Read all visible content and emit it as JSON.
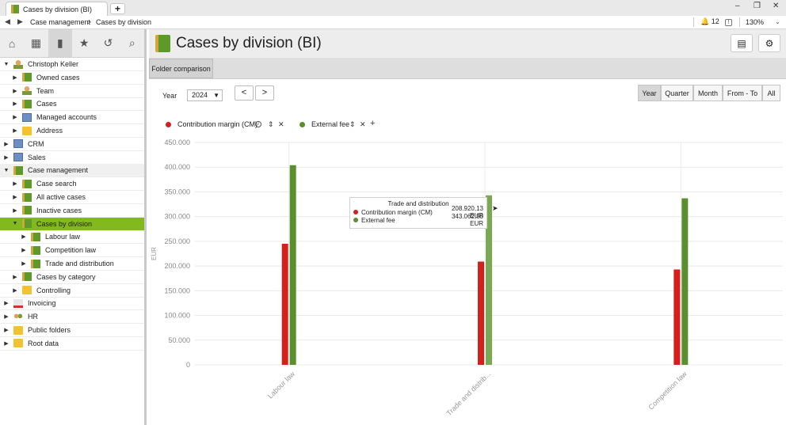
{
  "window": {
    "tab_title": "Cases by division (BI)",
    "new_tab": "+",
    "minimize": "–",
    "restore": "❐",
    "close": "✕"
  },
  "addressbar": {
    "back": "◀",
    "forward": "▶",
    "crumbs": [
      "Case management",
      "Cases by division"
    ],
    "separator": ">",
    "notification_count": "12",
    "zoom": "130%"
  },
  "sidebar": {
    "tools": [
      "home-icon",
      "calendar-icon",
      "chart-icon",
      "star-icon",
      "history-icon",
      "search-icon"
    ],
    "tree": [
      {
        "label": "Christoph Keller",
        "level": 0,
        "expanded": true,
        "icon": "person"
      },
      {
        "label": "Owned cases",
        "level": 1,
        "expanded": false,
        "icon": "green"
      },
      {
        "label": "Team",
        "level": 1,
        "expanded": false,
        "icon": "person"
      },
      {
        "label": "Cases",
        "level": 1,
        "expanded": false,
        "icon": "green"
      },
      {
        "label": "Managed accounts",
        "level": 1,
        "expanded": false,
        "icon": "blue"
      },
      {
        "label": "Address",
        "level": 1,
        "expanded": false,
        "icon": "folder"
      },
      {
        "label": "CRM",
        "level": 0,
        "expanded": false,
        "icon": "blue"
      },
      {
        "label": "Sales",
        "level": 0,
        "expanded": false,
        "icon": "blue"
      },
      {
        "label": "Case management",
        "level": 0,
        "expanded": true,
        "icon": "green",
        "highlight": true
      },
      {
        "label": "Case search",
        "level": 1,
        "expanded": false,
        "icon": "green"
      },
      {
        "label": "All active cases",
        "level": 1,
        "expanded": false,
        "icon": "green"
      },
      {
        "label": "Inactive cases",
        "level": 1,
        "expanded": false,
        "icon": "green"
      },
      {
        "label": "Cases by division",
        "level": 1,
        "expanded": true,
        "icon": "green",
        "selected": true
      },
      {
        "label": "Labour law",
        "level": 2,
        "expanded": false,
        "icon": "green"
      },
      {
        "label": "Competition law",
        "level": 2,
        "expanded": false,
        "icon": "green"
      },
      {
        "label": "Trade and distribution",
        "level": 2,
        "expanded": false,
        "icon": "green"
      },
      {
        "label": "Cases by category",
        "level": 1,
        "expanded": false,
        "icon": "green"
      },
      {
        "label": "Controlling",
        "level": 1,
        "expanded": false,
        "icon": "folder"
      },
      {
        "label": "Invoicing",
        "level": 0,
        "expanded": false,
        "icon": "red"
      },
      {
        "label": "HR",
        "level": 0,
        "expanded": false,
        "icon": "hr"
      },
      {
        "label": "Public folders",
        "level": 0,
        "expanded": false,
        "icon": "folder"
      },
      {
        "label": "Root data",
        "level": 0,
        "expanded": false,
        "icon": "folder"
      }
    ]
  },
  "main": {
    "title": "Cases by division (BI)",
    "subtab": "Folder comparison",
    "year_label": "Year",
    "year_value": "2024",
    "prev": "<",
    "next": ">",
    "periods": [
      "Year",
      "Quarter",
      "Month",
      "From - To",
      "All"
    ],
    "active_period": "Year"
  },
  "colors": {
    "cm": "#d4201b",
    "fee": "#5a8f2e",
    "fee_hover": "#7aa853",
    "selected": "#82b91e"
  },
  "chart_data": {
    "type": "bar",
    "categories": [
      "Labour law",
      "Trade and distribution",
      "Competition law"
    ],
    "category_tick_labels": [
      "Labour law",
      "Trade and distrib...",
      "Competition law"
    ],
    "series": [
      {
        "name": "Contribution margin (CM)",
        "values": [
          245000,
          208920.13,
          193000
        ]
      },
      {
        "name": "External fee",
        "values": [
          404000,
          343062.5,
          337000
        ]
      }
    ],
    "ylabel": "EUR",
    "ylim": [
      0,
      450000
    ],
    "yticks": [
      "450.000",
      "400.000",
      "350.000",
      "300.000",
      "250.000",
      "200.000",
      "150.000",
      "100.000",
      "50.000",
      "0"
    ],
    "grid": true,
    "legend": "top-left",
    "hover_category_index": 1,
    "tooltip": {
      "title": "Trade and distribution",
      "rows": [
        {
          "name": "Contribution margin (CM)",
          "value": "208.920,13 EUR"
        },
        {
          "name": "External fee",
          "value": "343.062,50 EUR"
        }
      ]
    }
  }
}
